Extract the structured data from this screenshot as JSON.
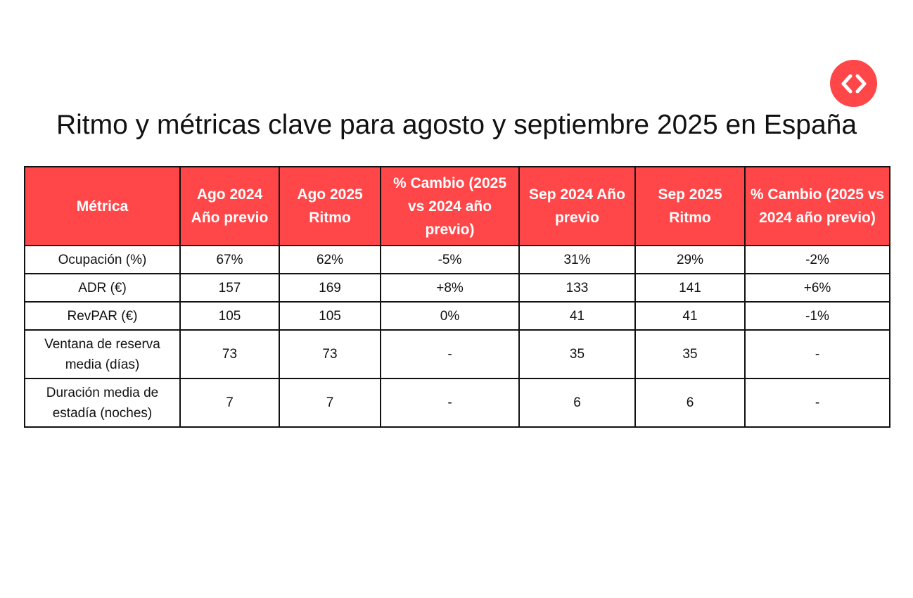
{
  "title": "Ritmo y métricas clave para agosto y septiembre 2025 en España",
  "colors": {
    "accent": "#FF474A",
    "border": "#111111",
    "header_text": "#FFFFFF"
  },
  "logo": {
    "icon": "chevrons-left-right-icon"
  },
  "table": {
    "headers": [
      "Métrica",
      "Ago 2024 Año previo",
      "Ago 2025 Ritmo",
      "% Cambio (2025 vs 2024 año previo)",
      "Sep 2024 Año previo",
      "Sep 2025 Ritmo",
      "% Cambio (2025 vs 2024 año previo)"
    ],
    "rows": [
      [
        "Ocupación (%)",
        "67%",
        "62%",
        "-5%",
        "31%",
        "29%",
        "-2%"
      ],
      [
        "ADR (€)",
        "157",
        "169",
        "+8%",
        "133",
        "141",
        "+6%"
      ],
      [
        "RevPAR (€)",
        "105",
        "105",
        "0%",
        "41",
        "41",
        "-1%"
      ],
      [
        "Ventana de reserva media (días)",
        "73",
        "73",
        "-",
        "35",
        "35",
        "-"
      ],
      [
        "Duración media de estadía (noches)",
        "7",
        "7",
        "-",
        "6",
        "6",
        "-"
      ]
    ]
  }
}
